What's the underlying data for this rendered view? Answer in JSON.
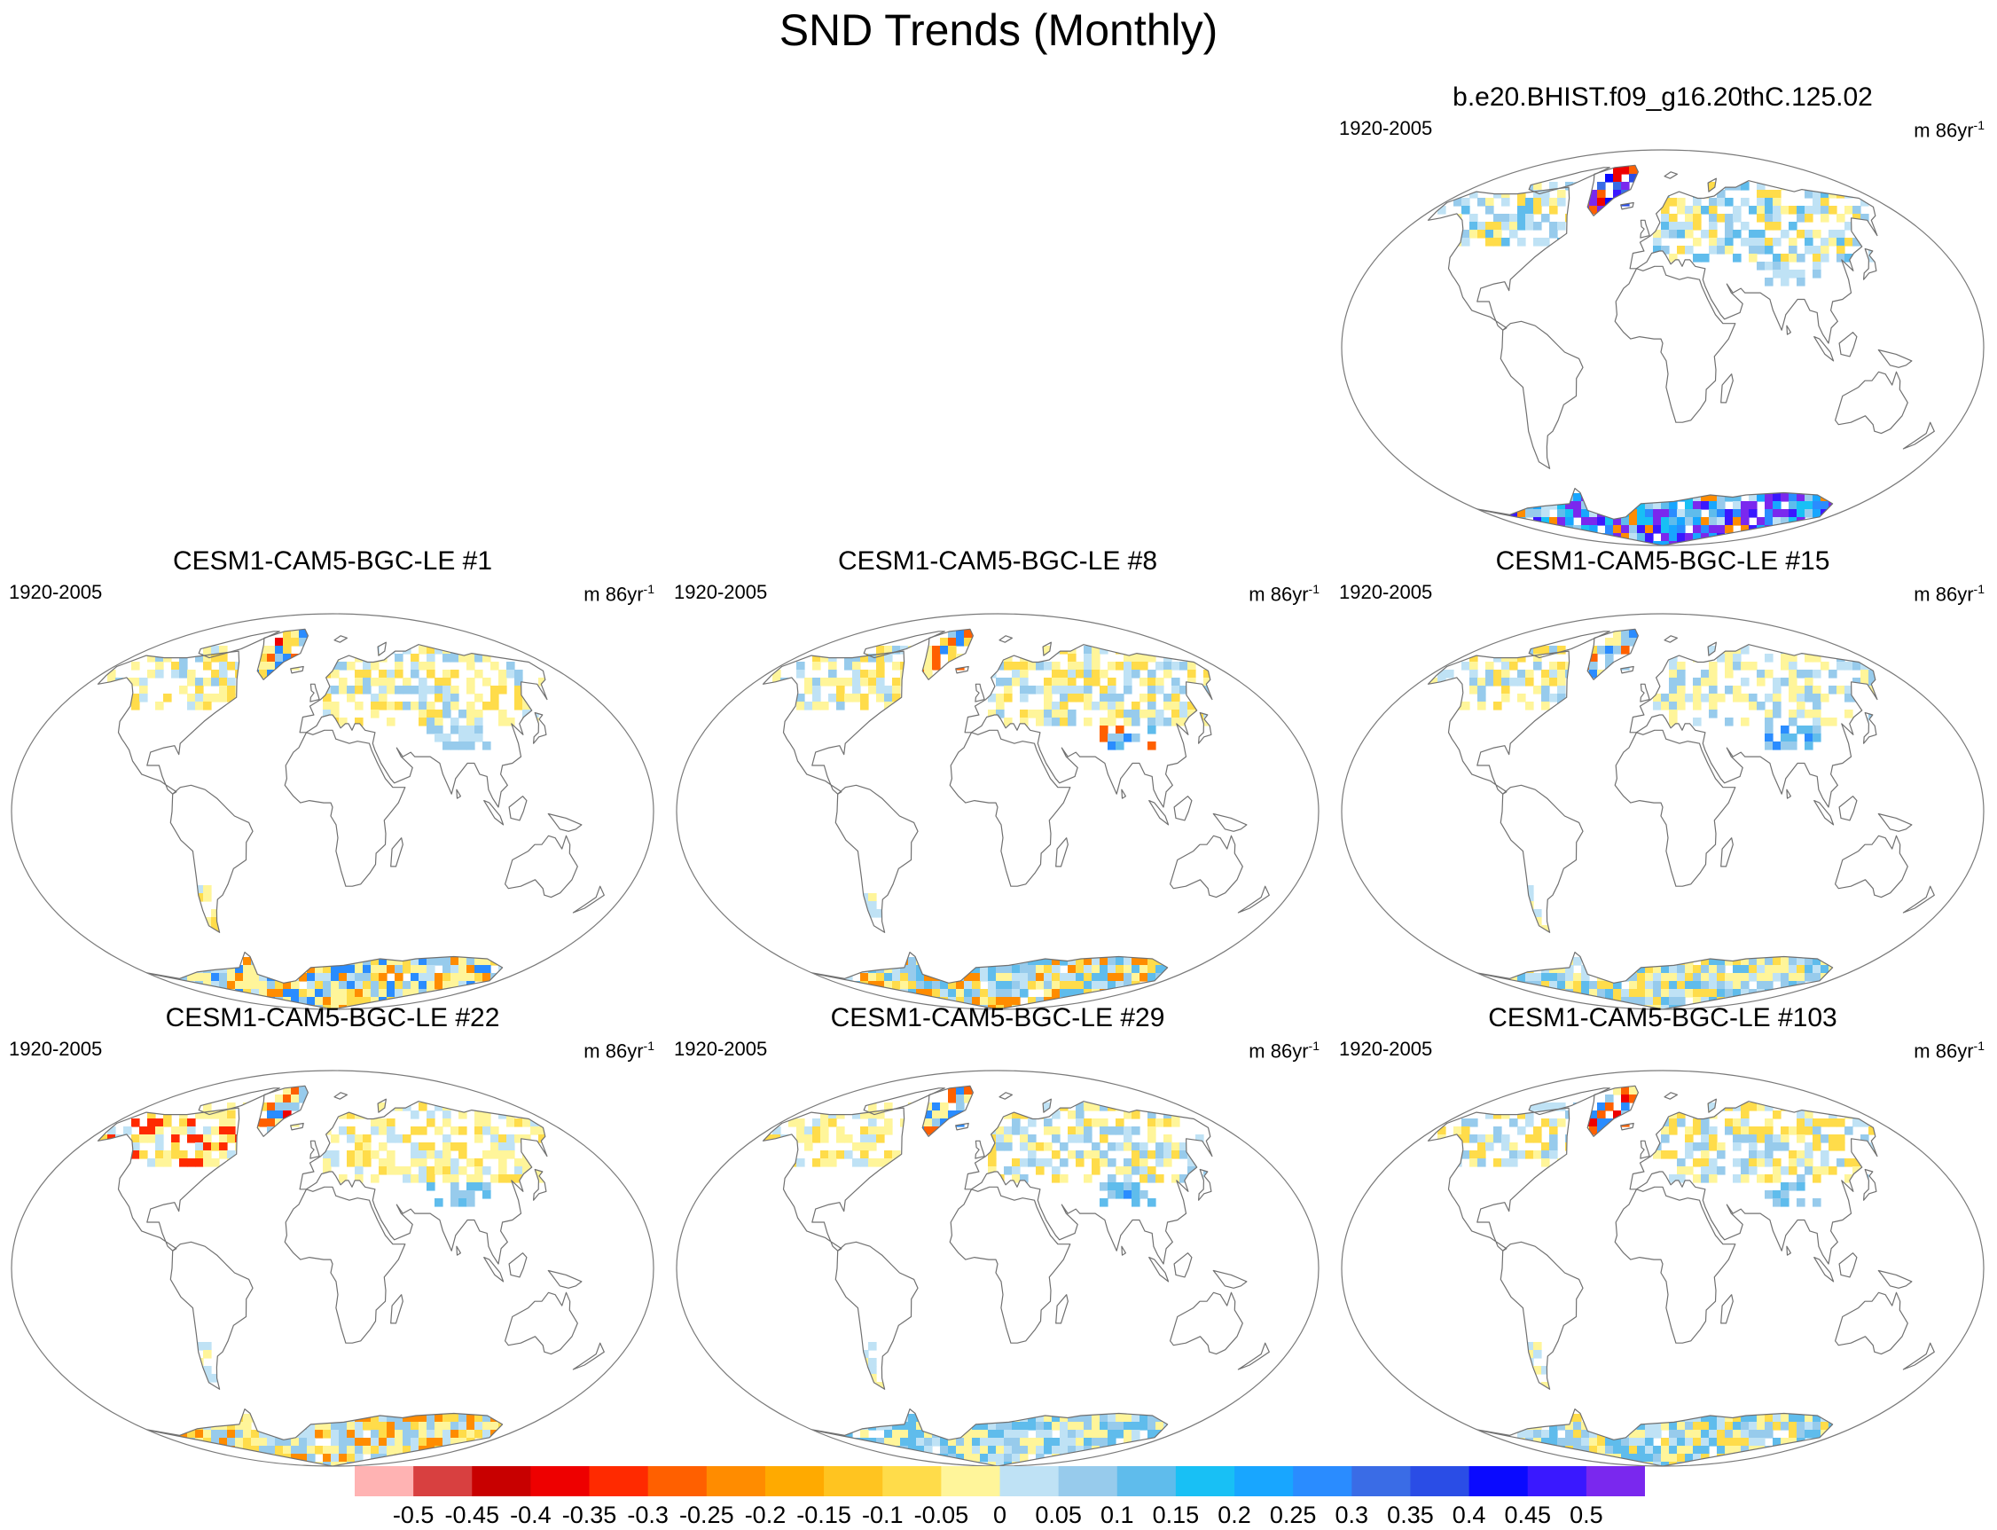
{
  "title": "SND Trends (Monthly)",
  "panels": [
    {
      "title": "b.e20.BHIST.f09_g16.20thC.125.02",
      "period": "1920-2005",
      "units_base": "m 86yr",
      "units_exp": "-1",
      "style": "obs"
    },
    {
      "title": "CESM1-CAM5-BGC-LE #1",
      "period": "1920-2005",
      "units_base": "m 86yr",
      "units_exp": "-1",
      "style": "m1"
    },
    {
      "title": "CESM1-CAM5-BGC-LE #8",
      "period": "1920-2005",
      "units_base": "m 86yr",
      "units_exp": "-1",
      "style": "m8"
    },
    {
      "title": "CESM1-CAM5-BGC-LE #15",
      "period": "1920-2005",
      "units_base": "m 86yr",
      "units_exp": "-1",
      "style": "m15"
    },
    {
      "title": "CESM1-CAM5-BGC-LE #22",
      "period": "1920-2005",
      "units_base": "m 86yr",
      "units_exp": "-1",
      "style": "m22"
    },
    {
      "title": "CESM1-CAM5-BGC-LE #29",
      "period": "1920-2005",
      "units_base": "m 86yr",
      "units_exp": "-1",
      "style": "m29"
    },
    {
      "title": "CESM1-CAM5-BGC-LE #103",
      "period": "1920-2005",
      "units_base": "m 86yr",
      "units_exp": "-1",
      "style": "m103"
    }
  ],
  "colorbar": {
    "colors": [
      "#ffb3b3",
      "#d84040",
      "#c80000",
      "#ee0000",
      "#ff2a00",
      "#ff6000",
      "#ff8c00",
      "#ffaa00",
      "#ffc420",
      "#ffdc4a",
      "#fff59a",
      "#bfe2f5",
      "#97cbec",
      "#5fbcec",
      "#18c0f5",
      "#18a6ff",
      "#2a8cff",
      "#3a6ce6",
      "#2a4de6",
      "#0a0aff",
      "#3a18ff",
      "#7a28ee"
    ],
    "labels": [
      "-0.5",
      "-0.45",
      "-0.4",
      "-0.35",
      "-0.3",
      "-0.25",
      "-0.2",
      "-0.15",
      "-0.1",
      "-0.05",
      "0",
      "0.05",
      "0.1",
      "0.15",
      "0.2",
      "0.25",
      "0.3",
      "0.35",
      "0.4",
      "0.45",
      "0.5"
    ]
  }
}
